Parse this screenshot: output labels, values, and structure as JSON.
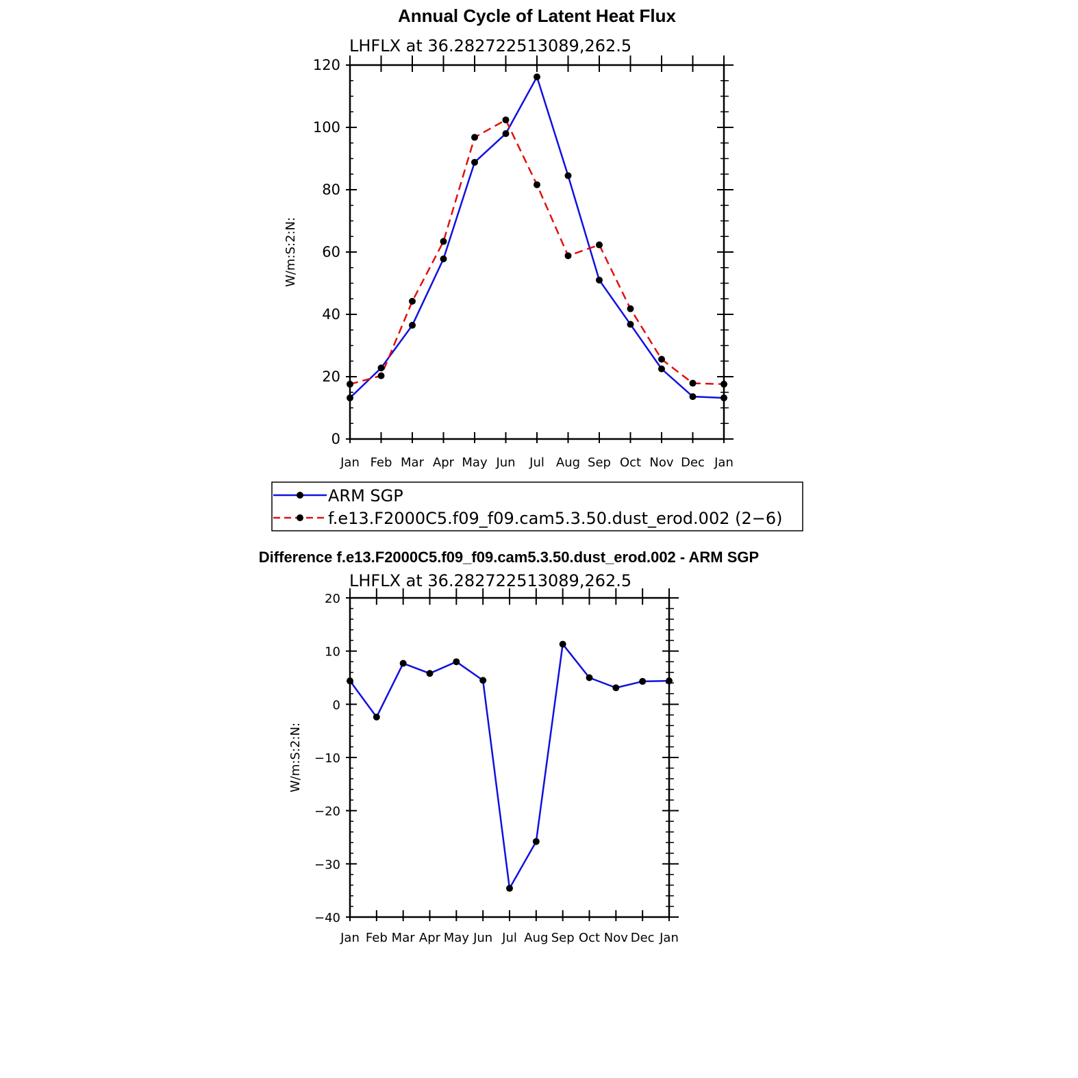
{
  "colors": {
    "obs": "#1010e0",
    "model": "#e01010",
    "diff": "#1010e0",
    "marker": "#000000",
    "axis": "#000000"
  },
  "chart_data": [
    {
      "type": "line",
      "title": "Annual Cycle of Latent Heat Flux",
      "subtitle": "LHFLX at 36.282722513089,262.5",
      "ylabel": "W/m:S:2:N:",
      "xlabel": "",
      "categories": [
        "Jan",
        "Feb",
        "Mar",
        "Apr",
        "May",
        "Jun",
        "Jul",
        "Aug",
        "Sep",
        "Oct",
        "Nov",
        "Dec",
        "Jan"
      ],
      "ylim": [
        0,
        120
      ],
      "y_ticks": [
        "0",
        "20",
        "40",
        "60",
        "80",
        "100",
        "120"
      ],
      "grid": false,
      "legend": "below",
      "series": [
        {
          "name": "ARM SGP",
          "style": "solid",
          "values": [
            13.2,
            22.8,
            36.5,
            57.8,
            88.8,
            98.0,
            116.2,
            84.5,
            51.0,
            36.8,
            22.5,
            13.6,
            13.2
          ]
        },
        {
          "name": "f.e13.F2000C5.f09_f09.cam5.3.50.dust_erod.002 (2−6)",
          "style": "dashed",
          "values": [
            17.6,
            20.3,
            44.2,
            63.4,
            96.8,
            102.4,
            81.6,
            58.8,
            62.3,
            41.8,
            25.6,
            17.9,
            17.6
          ]
        }
      ]
    },
    {
      "type": "line",
      "title": "Difference f.e13.F2000C5.f09_f09.cam5.3.50.dust_erod.002 - ARM SGP",
      "subtitle": "LHFLX at 36.282722513089,262.5",
      "ylabel": "W/m:S:2:N:",
      "xlabel": "",
      "categories": [
        "Jan",
        "Feb",
        "Mar",
        "Apr",
        "May",
        "Jun",
        "Jul",
        "Aug",
        "Sep",
        "Oct",
        "Nov",
        "Dec",
        "Jan"
      ],
      "ylim": [
        -40,
        20
      ],
      "y_ticks": [
        "−40",
        "−30",
        "−20",
        "−10",
        "0",
        "10",
        "20"
      ],
      "grid": false,
      "series": [
        {
          "name": "difference",
          "style": "solid",
          "values": [
            4.4,
            -2.4,
            7.7,
            5.8,
            8.0,
            4.5,
            -34.6,
            -25.8,
            11.3,
            5.0,
            3.1,
            4.3,
            4.4
          ]
        }
      ]
    }
  ]
}
